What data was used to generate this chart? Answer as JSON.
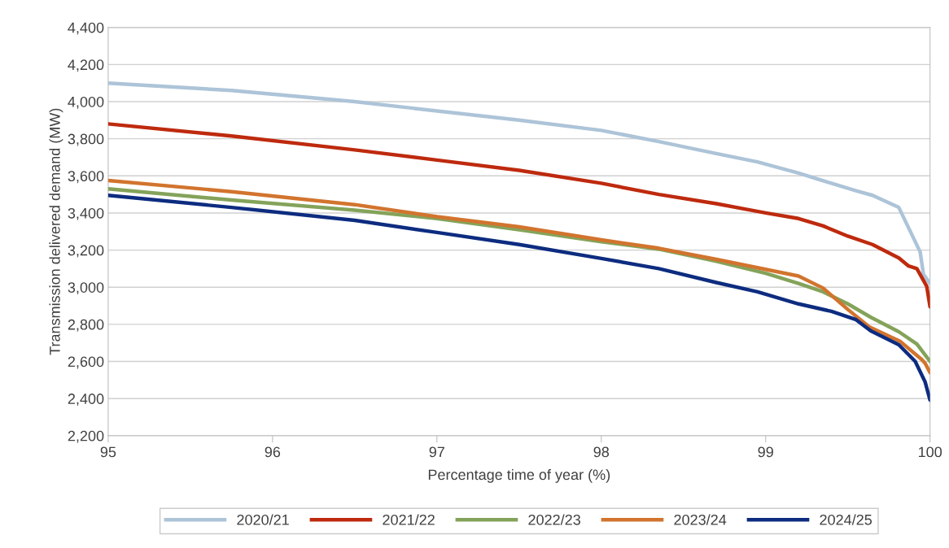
{
  "chart_data": {
    "type": "line",
    "xlabel": "Percentage time of year (%)",
    "ylabel": "Transmission delivered demand (MW)",
    "xlim": [
      95,
      100
    ],
    "xticks": [
      95,
      96,
      97,
      98,
      99,
      100
    ],
    "ylim": [
      2200,
      4400
    ],
    "yticks": [
      {
        "value": 2200,
        "label": "2,200"
      },
      {
        "value": 2400,
        "label": "2,400"
      },
      {
        "value": 2600,
        "label": "2,600"
      },
      {
        "value": 2800,
        "label": "2,800"
      },
      {
        "value": 3000,
        "label": "3,000"
      },
      {
        "value": 3200,
        "label": "3,200"
      },
      {
        "value": 3400,
        "label": "3,400"
      },
      {
        "value": 3600,
        "label": "3,600"
      },
      {
        "value": 3800,
        "label": "3,800"
      },
      {
        "value": 4000,
        "label": "4,000"
      },
      {
        "value": 4200,
        "label": "4,200"
      },
      {
        "value": 4400,
        "label": "4,400"
      }
    ],
    "grid": "y",
    "legend": "bottom",
    "marker": "none",
    "line_style": "solid",
    "series": [
      {
        "name": "2020/21",
        "color": "#adc4d8",
        "x": [
          95,
          95.75,
          96.5,
          97.5,
          98,
          98.35,
          98.7,
          98.95,
          99.2,
          99.4,
          99.55,
          99.65,
          99.81,
          99.94,
          99.96,
          100
        ],
        "values": [
          4100,
          4060,
          4000,
          3900,
          3845,
          3785,
          3720,
          3675,
          3615,
          3560,
          3520,
          3495,
          3430,
          3190,
          3070,
          3020
        ]
      },
      {
        "name": "2021/22",
        "color": "#be2a0e",
        "x": [
          95,
          95.75,
          96.5,
          97,
          97.5,
          98,
          98.35,
          98.7,
          99,
          99.2,
          99.35,
          99.5,
          99.65,
          99.81,
          99.87,
          99.92,
          99.98,
          100
        ],
        "values": [
          3880,
          3815,
          3740,
          3685,
          3630,
          3560,
          3500,
          3450,
          3400,
          3370,
          3330,
          3275,
          3230,
          3158,
          3114,
          3100,
          3005,
          2895
        ]
      },
      {
        "name": "2022/23",
        "color": "#84a35a",
        "x": [
          95,
          95.75,
          96.5,
          97,
          97.5,
          98,
          98.35,
          98.7,
          99,
          99.2,
          99.35,
          99.5,
          99.64,
          99.81,
          99.92,
          100
        ],
        "values": [
          3530,
          3470,
          3415,
          3370,
          3310,
          3245,
          3205,
          3140,
          3075,
          3020,
          2975,
          2910,
          2838,
          2760,
          2694,
          2600
        ]
      },
      {
        "name": "2023/24",
        "color": "#d2742e",
        "x": [
          95,
          95.75,
          96.5,
          97,
          97.5,
          98,
          98.35,
          98.7,
          98.95,
          99.2,
          99.35,
          99.5,
          99.63,
          99.82,
          99.95,
          99.97,
          100
        ],
        "values": [
          3575,
          3515,
          3445,
          3380,
          3325,
          3255,
          3210,
          3150,
          3105,
          3060,
          2995,
          2880,
          2786,
          2707,
          2610,
          2590,
          2540
        ]
      },
      {
        "name": "2024/25",
        "color": "#0d2c80",
        "x": [
          95,
          95.75,
          96.5,
          97,
          97.5,
          98,
          98.35,
          98.7,
          98.95,
          99.2,
          99.4,
          99.55,
          99.64,
          99.81,
          99.91,
          99.97,
          100
        ],
        "values": [
          3495,
          3430,
          3360,
          3295,
          3230,
          3155,
          3100,
          3025,
          2975,
          2910,
          2870,
          2825,
          2764,
          2690,
          2600,
          2490,
          2392
        ]
      }
    ]
  }
}
